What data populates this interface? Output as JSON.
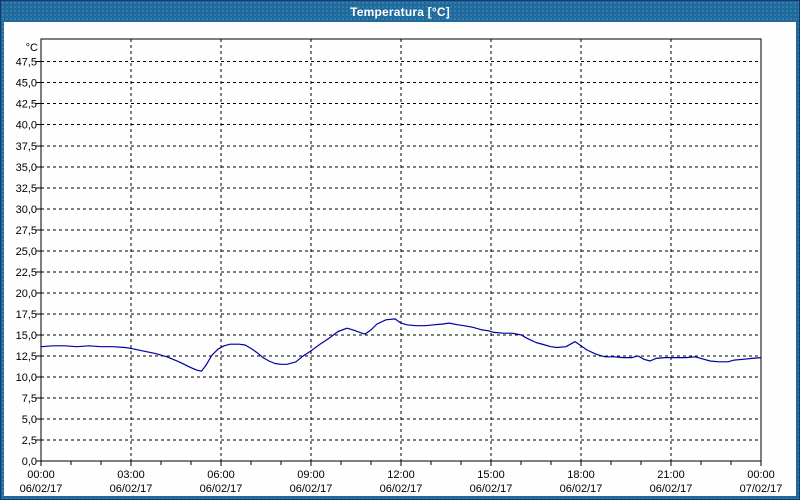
{
  "window": {
    "accent_color": "#1E6A9C",
    "frame_outline_color": "#17376b",
    "background_color": "#FDFEFD"
  },
  "chart_data": {
    "type": "line",
    "title": "Temperatura [°C]",
    "y_unit": "°C",
    "ylabel": "",
    "xlabel": "",
    "ylim": [
      0,
      50.2
    ],
    "y_gridline_step": 2.5,
    "x_gridline_hours": 3,
    "x_minor_tick_hours": 1,
    "grid": "dashed-black",
    "legend_position": "none",
    "decimal_separator": ",",
    "y_ticks": [
      {
        "v": 0.0,
        "label": "0,0"
      },
      {
        "v": 2.5,
        "label": "2,5"
      },
      {
        "v": 5.0,
        "label": "5,0"
      },
      {
        "v": 7.5,
        "label": "7,5"
      },
      {
        "v": 10.0,
        "label": "10,0"
      },
      {
        "v": 12.5,
        "label": "12,5"
      },
      {
        "v": 15.0,
        "label": "15,0"
      },
      {
        "v": 17.5,
        "label": "17,5"
      },
      {
        "v": 20.0,
        "label": "20,0"
      },
      {
        "v": 22.5,
        "label": "22,5"
      },
      {
        "v": 25.0,
        "label": "25,0"
      },
      {
        "v": 27.5,
        "label": "27,5"
      },
      {
        "v": 30.0,
        "label": "30,0"
      },
      {
        "v": 32.5,
        "label": "32,5"
      },
      {
        "v": 35.0,
        "label": "35,0"
      },
      {
        "v": 37.5,
        "label": "37,5"
      },
      {
        "v": 40.0,
        "label": "40,0"
      },
      {
        "v": 42.5,
        "label": "42,5"
      },
      {
        "v": 45.0,
        "label": "45,0"
      },
      {
        "v": 47.5,
        "label": "47,5"
      }
    ],
    "x_ticks": [
      {
        "h": 0,
        "time": "00:00",
        "date": "06/02/17"
      },
      {
        "h": 3,
        "time": "03:00",
        "date": "06/02/17"
      },
      {
        "h": 6,
        "time": "06:00",
        "date": "06/02/17"
      },
      {
        "h": 9,
        "time": "09:00",
        "date": "06/02/17"
      },
      {
        "h": 12,
        "time": "12:00",
        "date": "06/02/17"
      },
      {
        "h": 15,
        "time": "15:00",
        "date": "06/02/17"
      },
      {
        "h": 18,
        "time": "18:00",
        "date": "06/02/17"
      },
      {
        "h": 21,
        "time": "21:00",
        "date": "06/02/17"
      },
      {
        "h": 24,
        "time": "00:00",
        "date": "07/02/17"
      }
    ],
    "series": [
      {
        "name": "Temperatura",
        "color": "#0000A0",
        "points": [
          [
            0.0,
            13.6
          ],
          [
            0.4,
            13.7
          ],
          [
            0.8,
            13.7
          ],
          [
            1.2,
            13.6
          ],
          [
            1.6,
            13.7
          ],
          [
            2.0,
            13.6
          ],
          [
            2.4,
            13.6
          ],
          [
            2.8,
            13.5
          ],
          [
            3.0,
            13.4
          ],
          [
            3.4,
            13.1
          ],
          [
            3.8,
            12.8
          ],
          [
            4.2,
            12.4
          ],
          [
            4.6,
            11.8
          ],
          [
            5.0,
            11.1
          ],
          [
            5.2,
            10.8
          ],
          [
            5.35,
            10.7
          ],
          [
            5.5,
            11.4
          ],
          [
            5.7,
            12.6
          ],
          [
            5.9,
            13.3
          ],
          [
            6.1,
            13.7
          ],
          [
            6.3,
            13.9
          ],
          [
            6.6,
            13.9
          ],
          [
            6.8,
            13.8
          ],
          [
            7.0,
            13.4
          ],
          [
            7.2,
            12.9
          ],
          [
            7.4,
            12.3
          ],
          [
            7.6,
            11.9
          ],
          [
            7.8,
            11.6
          ],
          [
            8.0,
            11.5
          ],
          [
            8.2,
            11.5
          ],
          [
            8.5,
            11.8
          ],
          [
            8.7,
            12.4
          ],
          [
            9.0,
            13.1
          ],
          [
            9.3,
            13.9
          ],
          [
            9.6,
            14.6
          ],
          [
            9.9,
            15.4
          ],
          [
            10.2,
            15.8
          ],
          [
            10.4,
            15.6
          ],
          [
            10.7,
            15.2
          ],
          [
            10.8,
            15.1
          ],
          [
            11.0,
            15.6
          ],
          [
            11.2,
            16.3
          ],
          [
            11.5,
            16.8
          ],
          [
            11.8,
            16.9
          ],
          [
            12.0,
            16.4
          ],
          [
            12.2,
            16.2
          ],
          [
            12.5,
            16.1
          ],
          [
            12.8,
            16.1
          ],
          [
            13.1,
            16.2
          ],
          [
            13.4,
            16.3
          ],
          [
            13.6,
            16.4
          ],
          [
            13.9,
            16.2
          ],
          [
            14.1,
            16.1
          ],
          [
            14.4,
            15.9
          ],
          [
            14.7,
            15.6
          ],
          [
            14.9,
            15.5
          ],
          [
            15.1,
            15.3
          ],
          [
            15.4,
            15.2
          ],
          [
            15.7,
            15.2
          ],
          [
            16.0,
            15.0
          ],
          [
            16.2,
            14.6
          ],
          [
            16.5,
            14.1
          ],
          [
            16.8,
            13.8
          ],
          [
            17.0,
            13.6
          ],
          [
            17.2,
            13.5
          ],
          [
            17.5,
            13.6
          ],
          [
            17.7,
            14.0
          ],
          [
            17.8,
            14.2
          ],
          [
            18.0,
            13.7
          ],
          [
            18.2,
            13.2
          ],
          [
            18.5,
            12.7
          ],
          [
            18.8,
            12.4
          ],
          [
            19.1,
            12.4
          ],
          [
            19.4,
            12.3
          ],
          [
            19.7,
            12.3
          ],
          [
            19.9,
            12.5
          ],
          [
            20.1,
            12.1
          ],
          [
            20.3,
            11.9
          ],
          [
            20.5,
            12.2
          ],
          [
            20.8,
            12.3
          ],
          [
            21.2,
            12.3
          ],
          [
            21.5,
            12.3
          ],
          [
            21.8,
            12.4
          ],
          [
            22.0,
            12.2
          ],
          [
            22.3,
            11.9
          ],
          [
            22.6,
            11.8
          ],
          [
            22.9,
            11.8
          ],
          [
            23.1,
            12.0
          ],
          [
            23.4,
            12.1
          ],
          [
            23.7,
            12.2
          ],
          [
            24.0,
            12.3
          ]
        ]
      }
    ]
  }
}
